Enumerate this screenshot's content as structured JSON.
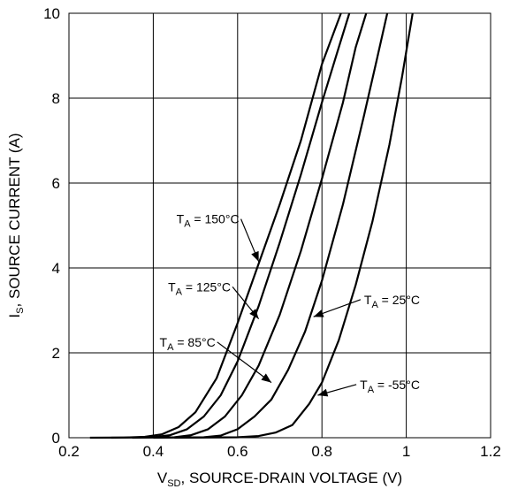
{
  "chart_data": {
    "type": "line",
    "title": "",
    "xlabel": {
      "main": "V",
      "sub": "SD",
      "rest": ", SOURCE-DRAIN VOLTAGE (V)"
    },
    "ylabel": {
      "main": "I",
      "sub": "S",
      "rest": ", SOURCE CURRENT (A)"
    },
    "xlim": [
      0.2,
      1.2
    ],
    "ylim": [
      0,
      10
    ],
    "xticks": [
      0.2,
      0.4,
      0.6,
      0.8,
      1,
      1.2
    ],
    "xtick_labels": [
      "0.2",
      "0.4",
      "0.6",
      "0.8",
      "1",
      "1.2"
    ],
    "yticks": [
      0,
      2,
      4,
      6,
      8,
      10
    ],
    "ytick_labels": [
      "0",
      "2",
      "4",
      "6",
      "8",
      "10"
    ],
    "grid": true,
    "line_color": "#000000",
    "series": [
      {
        "name": "T_A = 150°C",
        "points": [
          [
            0.25,
            0
          ],
          [
            0.33,
            0.005
          ],
          [
            0.38,
            0.02
          ],
          [
            0.42,
            0.08
          ],
          [
            0.46,
            0.25
          ],
          [
            0.5,
            0.6
          ],
          [
            0.55,
            1.4
          ],
          [
            0.6,
            2.7
          ],
          [
            0.65,
            4.1
          ],
          [
            0.7,
            5.5
          ],
          [
            0.75,
            7.0
          ],
          [
            0.8,
            8.8
          ],
          [
            0.845,
            10
          ]
        ]
      },
      {
        "name": "T_A = 125°C",
        "points": [
          [
            0.3,
            0
          ],
          [
            0.4,
            0.01
          ],
          [
            0.44,
            0.06
          ],
          [
            0.48,
            0.2
          ],
          [
            0.52,
            0.5
          ],
          [
            0.56,
            1.0
          ],
          [
            0.6,
            1.8
          ],
          [
            0.65,
            3.1
          ],
          [
            0.7,
            4.6
          ],
          [
            0.75,
            6.2
          ],
          [
            0.8,
            7.9
          ],
          [
            0.84,
            9.2
          ],
          [
            0.865,
            10
          ]
        ]
      },
      {
        "name": "T_A = 85°C",
        "points": [
          [
            0.35,
            0
          ],
          [
            0.45,
            0.01
          ],
          [
            0.49,
            0.06
          ],
          [
            0.53,
            0.2
          ],
          [
            0.57,
            0.5
          ],
          [
            0.61,
            1.0
          ],
          [
            0.65,
            1.7
          ],
          [
            0.7,
            2.9
          ],
          [
            0.75,
            4.4
          ],
          [
            0.8,
            6.1
          ],
          [
            0.85,
            7.9
          ],
          [
            0.88,
            9.2
          ],
          [
            0.905,
            10
          ]
        ]
      },
      {
        "name": "T_A = 25°C",
        "points": [
          [
            0.4,
            0
          ],
          [
            0.52,
            0.01
          ],
          [
            0.56,
            0.05
          ],
          [
            0.6,
            0.2
          ],
          [
            0.64,
            0.5
          ],
          [
            0.68,
            0.9
          ],
          [
            0.72,
            1.6
          ],
          [
            0.76,
            2.5
          ],
          [
            0.8,
            3.7
          ],
          [
            0.85,
            5.5
          ],
          [
            0.9,
            7.6
          ],
          [
            0.93,
            8.9
          ],
          [
            0.955,
            10
          ]
        ]
      },
      {
        "name": "T_A = -55°C",
        "points": [
          [
            0.45,
            0
          ],
          [
            0.6,
            0.01
          ],
          [
            0.65,
            0.04
          ],
          [
            0.69,
            0.12
          ],
          [
            0.73,
            0.3
          ],
          [
            0.77,
            0.8
          ],
          [
            0.8,
            1.3
          ],
          [
            0.84,
            2.3
          ],
          [
            0.88,
            3.6
          ],
          [
            0.92,
            5.1
          ],
          [
            0.96,
            6.9
          ],
          [
            0.99,
            8.5
          ],
          [
            1.015,
            10
          ]
        ]
      }
    ],
    "annotations": [
      {
        "main": "T",
        "sub": "A",
        "rest": " = 150°C",
        "series": 0,
        "tx": 0.455,
        "ty": 5.05,
        "ax": 0.65,
        "ay": 4.15
      },
      {
        "main": "T",
        "sub": "A",
        "rest": " = 125°C",
        "series": 1,
        "tx": 0.435,
        "ty": 3.45,
        "ax": 0.65,
        "ay": 2.8
      },
      {
        "main": "T",
        "sub": "A",
        "rest": " = 85°C",
        "series": 2,
        "tx": 0.415,
        "ty": 2.15,
        "ax": 0.68,
        "ay": 1.3
      },
      {
        "main": "T",
        "sub": "A",
        "rest": " = 25°C",
        "series": 3,
        "tx": 0.9,
        "ty": 3.15,
        "ax": 0.78,
        "ay": 2.85
      },
      {
        "main": "T",
        "sub": "A",
        "rest": " = -55°C",
        "series": 4,
        "tx": 0.89,
        "ty": 1.15,
        "ax": 0.79,
        "ay": 1.0
      }
    ]
  }
}
